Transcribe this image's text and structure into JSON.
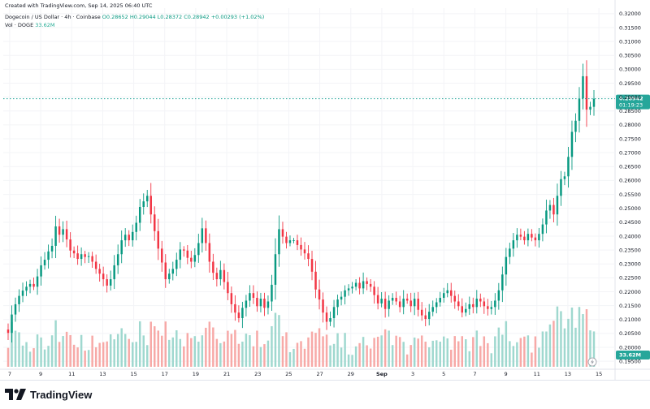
{
  "header": {
    "created": "Created with TradingView.com, Sep 14, 2025 06:40 UTC",
    "symbol": "Dogecoin / US Dollar · 4h · Coinbase",
    "ohlc": "O0.28652 H0.29044 L0.28372 C0.28942 +0.00293 (+1.02%)",
    "vol_label": "Vol · DOGE",
    "vol_value": "33.62M"
  },
  "brand": {
    "name": "TradingView"
  },
  "colors": {
    "up": "#089981",
    "down": "#f23645",
    "vol_up": "#9fd8cf",
    "vol_down": "#f7a9a7",
    "price_line": "#26a69a"
  },
  "chart_data": {
    "type": "candlestick",
    "title": "Dogecoin / US Dollar · 4h · Coinbase",
    "price_axis_ticks": [
      0.195,
      0.2,
      0.205,
      0.21,
      0.215,
      0.22,
      0.225,
      0.23,
      0.235,
      0.24,
      0.245,
      0.25,
      0.255,
      0.26,
      0.265,
      0.27,
      0.275,
      0.28,
      0.285,
      0.29,
      0.295,
      0.3,
      0.305,
      0.31,
      0.315,
      0.32
    ],
    "price_axis_labels": [
      "0.19500",
      "0.20000",
      "0.20500",
      "0.21000",
      "0.21500",
      "0.22000",
      "0.22500",
      "0.23000",
      "0.23500",
      "0.24000",
      "0.24500",
      "0.25000",
      "0.25500",
      "0.26000",
      "0.26500",
      "0.27000",
      "0.27500",
      "0.28000",
      "0.28500",
      "0.29000",
      "0.29500",
      "0.30000",
      "0.30500",
      "0.31000",
      "0.31500",
      "0.32000"
    ],
    "ylim": [
      0.193,
      0.322
    ],
    "x_ticks": [
      "7",
      "9",
      "11",
      "13",
      "15",
      "17",
      "19",
      "21",
      "23",
      "25",
      "27",
      "29",
      "Sep",
      "3",
      "5",
      "7",
      "9",
      "11",
      "13",
      "15"
    ],
    "last_price": "0.28942",
    "countdown": "01:19:23",
    "volume_label": "33.62M",
    "close": [
      0.2052,
      0.2118,
      0.2155,
      0.2185,
      0.2204,
      0.2218,
      0.2228,
      0.2218,
      0.2255,
      0.2295,
      0.2315,
      0.2345,
      0.2365,
      0.2435,
      0.2405,
      0.2425,
      0.2388,
      0.2348,
      0.2338,
      0.2318,
      0.2335,
      0.2325,
      0.2328,
      0.2308,
      0.2282,
      0.2265,
      0.2245,
      0.2222,
      0.2245,
      0.2295,
      0.2335,
      0.2385,
      0.2405,
      0.2385,
      0.2415,
      0.2448,
      0.2505,
      0.2525,
      0.2545,
      0.2478,
      0.2418,
      0.2355,
      0.2305,
      0.2245,
      0.2265,
      0.2282,
      0.2315,
      0.2352,
      0.2348,
      0.2322,
      0.2308,
      0.2332,
      0.2375,
      0.2428,
      0.2375,
      0.2308,
      0.2268,
      0.2245,
      0.2278,
      0.2235,
      0.2195,
      0.2155,
      0.2125,
      0.2105,
      0.2142,
      0.2168,
      0.2195,
      0.2178,
      0.2148,
      0.2175,
      0.2142,
      0.2165,
      0.2225,
      0.2335,
      0.2425,
      0.2398,
      0.2375,
      0.2385,
      0.2385,
      0.2368,
      0.2352,
      0.2338,
      0.2318,
      0.2272,
      0.2208,
      0.2172,
      0.2125,
      0.2092,
      0.2105,
      0.2145,
      0.2172,
      0.2182,
      0.2205,
      0.2212,
      0.2218,
      0.2232,
      0.2212,
      0.2238,
      0.2228,
      0.2218,
      0.2188,
      0.2158,
      0.2175,
      0.2138,
      0.2168,
      0.2178,
      0.2165,
      0.2145,
      0.2175,
      0.2168,
      0.2148,
      0.2175,
      0.2135,
      0.2115,
      0.2102,
      0.2128,
      0.2145,
      0.2162,
      0.2178,
      0.2195,
      0.2205,
      0.2185,
      0.2165,
      0.2148,
      0.2125,
      0.2138,
      0.2155,
      0.2145,
      0.2175,
      0.2165,
      0.2148,
      0.2138,
      0.2145,
      0.2168,
      0.2205,
      0.2262,
      0.2325,
      0.2355,
      0.2385,
      0.2405,
      0.2398,
      0.2385,
      0.2408,
      0.2395,
      0.2385,
      0.2408,
      0.2442,
      0.2492,
      0.2512,
      0.2478,
      0.2545,
      0.2605,
      0.2615,
      0.2685,
      0.2775,
      0.2815,
      0.2895,
      0.2975,
      0.2855,
      0.2865,
      0.2894
    ]
  }
}
